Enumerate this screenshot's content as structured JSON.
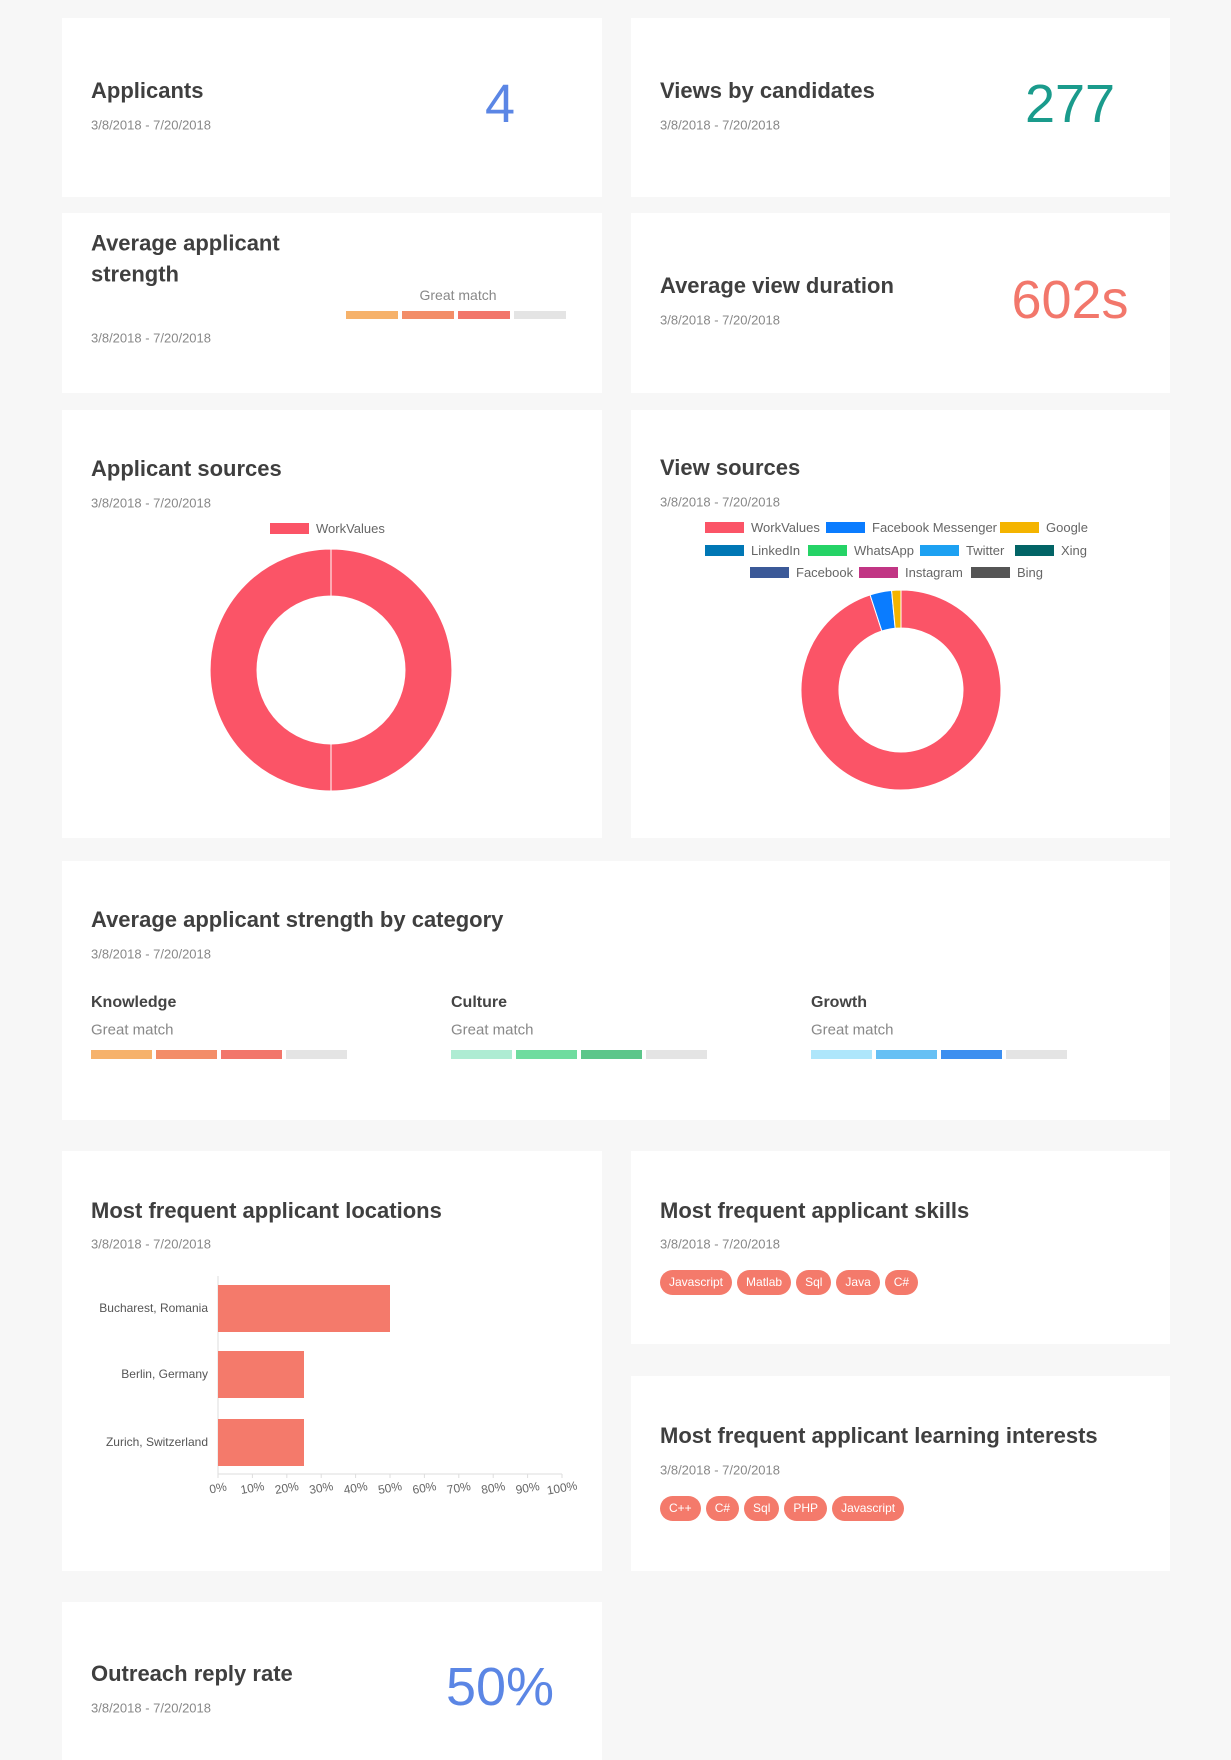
{
  "applicants": {
    "title": "Applicants",
    "date": "3/8/2018 - 7/20/2018",
    "value": "4",
    "color": "#5b86e5"
  },
  "views": {
    "title": "Views by candidates",
    "date": "3/8/2018 - 7/20/2018",
    "value": "277",
    "color": "#1a9b8c"
  },
  "avg_strength": {
    "title": "Average applicant strength",
    "date": "3/8/2018 - 7/20/2018",
    "label": "Great match",
    "level": 3,
    "segments": 4,
    "colors": [
      "#f6b26b",
      "#f38d68",
      "#f2766b"
    ],
    "empty_color": "#e4e4e4"
  },
  "avg_duration": {
    "title": "Average view duration",
    "date": "3/8/2018 - 7/20/2018",
    "value": "602s",
    "color": "#f2776b"
  },
  "applicant_sources": {
    "title": "Applicant sources",
    "date": "3/8/2018 - 7/20/2018",
    "chart_data": {
      "type": "pie",
      "categories": [
        "WorkValues"
      ],
      "values": [
        100
      ],
      "colors": [
        "#fb5467"
      ]
    }
  },
  "view_sources": {
    "title": "View sources",
    "date": "3/8/2018 - 7/20/2018",
    "chart_data": {
      "type": "pie",
      "categories": [
        "WorkValues",
        "Facebook Messenger",
        "Google",
        "LinkedIn",
        "WhatsApp",
        "Twitter",
        "Xing",
        "Facebook",
        "Instagram",
        "Bing"
      ],
      "values": [
        95,
        3.5,
        1.5,
        0,
        0,
        0,
        0,
        0,
        0,
        0
      ],
      "colors": [
        "#fb5467",
        "#0a7cff",
        "#f4b400",
        "#0077b5",
        "#25d366",
        "#1da1f2",
        "#026466",
        "#3b5998",
        "#c13584",
        "#555555"
      ]
    }
  },
  "strength_by_category": {
    "title": "Average applicant strength by category",
    "date": "3/8/2018 - 7/20/2018",
    "segments": 4,
    "empty_color": "#e4e4e4",
    "categories": [
      {
        "name": "Knowledge",
        "label": "Great match",
        "level": 3,
        "colors": [
          "#f6b26b",
          "#f38d68",
          "#f2766b"
        ]
      },
      {
        "name": "Culture",
        "label": "Great match",
        "level": 3,
        "colors": [
          "#aeecd3",
          "#6fdc9f",
          "#5cc68a"
        ]
      },
      {
        "name": "Growth",
        "label": "Great match",
        "level": 3,
        "colors": [
          "#aee6fb",
          "#66c0f4",
          "#3d8ff0"
        ]
      }
    ]
  },
  "locations": {
    "title": "Most frequent applicant locations",
    "date": "3/8/2018 - 7/20/2018",
    "chart_data": {
      "type": "bar",
      "orientation": "horizontal",
      "categories": [
        "Bucharest, Romania",
        "Berlin, Germany",
        "Zurich, Switzerland"
      ],
      "values": [
        50,
        25,
        25
      ],
      "color": "#f47a6b",
      "xlim": [
        0,
        100
      ],
      "xticks": [
        {
          "value": 0,
          "label": "0%"
        },
        {
          "value": 10,
          "label": "10%"
        },
        {
          "value": 20,
          "label": "20%"
        },
        {
          "value": 30,
          "label": "30%"
        },
        {
          "value": 40,
          "label": "40%"
        },
        {
          "value": 50,
          "label": "50%"
        },
        {
          "value": 60,
          "label": "60%"
        },
        {
          "value": 70,
          "label": "70%"
        },
        {
          "value": 80,
          "label": "80%"
        },
        {
          "value": 90,
          "label": "90%"
        },
        {
          "value": 100,
          "label": "100%"
        }
      ]
    }
  },
  "skills": {
    "title": "Most frequent applicant skills",
    "date": "3/8/2018 - 7/20/2018",
    "tags": [
      "Javascript",
      "Matlab",
      "Sql",
      "Java",
      "C#"
    ]
  },
  "learning_interests": {
    "title": "Most frequent applicant learning interests",
    "date": "3/8/2018 - 7/20/2018",
    "tags": [
      "C++",
      "C#",
      "Sql",
      "PHP",
      "Javascript"
    ]
  },
  "outreach": {
    "title": "Outreach reply rate",
    "date": "3/8/2018 - 7/20/2018",
    "value": "50%",
    "color": "#5b86e5"
  }
}
